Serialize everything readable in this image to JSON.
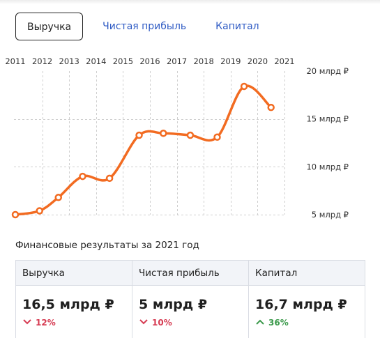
{
  "tabs": [
    {
      "label": "Выручка",
      "active": true
    },
    {
      "label": "Чистая прибыль",
      "active": false
    },
    {
      "label": "Капитал",
      "active": false
    }
  ],
  "colors": {
    "line": "#f26b21",
    "accent": "#2f5bc4",
    "down": "#d63b52",
    "up": "#3c9a4c"
  },
  "chart_data": {
    "type": "line",
    "x": [
      "2011",
      "2012",
      "2013",
      "2014",
      "2015",
      "2016",
      "2017",
      "2018",
      "2019",
      "2020",
      "2021"
    ],
    "y_tick_labels": [
      "20 млрд ₽",
      "15 млрд ₽",
      "10 млрд ₽",
      "5 млрд ₽"
    ],
    "y_ticks": [
      20,
      15,
      10,
      5
    ],
    "ylim": [
      5,
      20
    ],
    "grid": true,
    "x_axis_position": "top",
    "y_axis_position": "right",
    "series": [
      {
        "points": [
          {
            "x": 2011.0,
            "y": 5.0
          },
          {
            "x": 2011.9,
            "y": 5.4
          },
          {
            "x": 2012.6,
            "y": 6.8
          },
          {
            "x": 2013.5,
            "y": 9.0
          },
          {
            "x": 2014.5,
            "y": 8.8
          },
          {
            "x": 2015.6,
            "y": 13.3
          },
          {
            "x": 2016.5,
            "y": 13.5
          },
          {
            "x": 2017.5,
            "y": 13.3
          },
          {
            "x": 2018.5,
            "y": 13.1
          },
          {
            "x": 2019.5,
            "y": 18.4
          },
          {
            "x": 2020.5,
            "y": 16.2
          }
        ]
      }
    ]
  },
  "subtitle": "Финансовые результаты за 2021 год",
  "cards": [
    {
      "label": "Выручка",
      "value": "16,5 млрд ₽",
      "change": "12%",
      "direction": "down",
      "arrow_icon": "chevron-down-icon"
    },
    {
      "label": "Чистая прибыль",
      "value": "5 млрд ₽",
      "change": "10%",
      "direction": "down",
      "arrow_icon": "chevron-down-icon"
    },
    {
      "label": "Капитал",
      "value": "16,7 млрд ₽",
      "change": "36%",
      "direction": "up",
      "arrow_icon": "chevron-up-icon"
    }
  ]
}
